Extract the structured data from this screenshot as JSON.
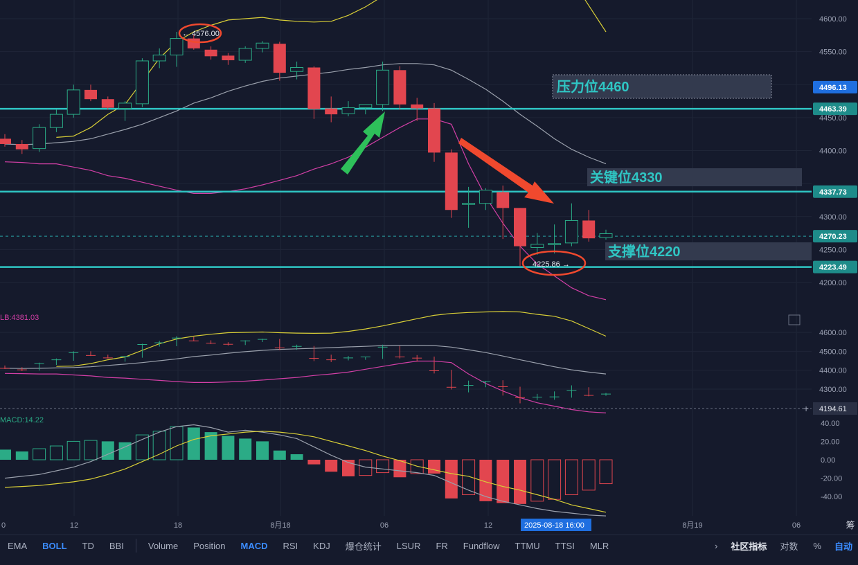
{
  "chart_data": [
    {
      "type": "candlestick",
      "panel": "main",
      "yticks": [
        4600.0,
        4550.0,
        4450.0,
        4400.0,
        4300.0,
        4250.0,
        4200.0
      ],
      "ylim": [
        4165,
        4628
      ],
      "candles": [
        {
          "o": 4418,
          "h": 4425,
          "l": 4406,
          "c": 4410
        },
        {
          "o": 4410,
          "h": 4416,
          "l": 4395,
          "c": 4402
        },
        {
          "o": 4403,
          "h": 4440,
          "l": 4398,
          "c": 4435
        },
        {
          "o": 4435,
          "h": 4462,
          "l": 4428,
          "c": 4455
        },
        {
          "o": 4455,
          "h": 4500,
          "l": 4450,
          "c": 4492
        },
        {
          "o": 4492,
          "h": 4500,
          "l": 4475,
          "c": 4478
        },
        {
          "o": 4478,
          "h": 4482,
          "l": 4462,
          "c": 4465
        },
        {
          "o": 4464,
          "h": 4475,
          "l": 4445,
          "c": 4472
        },
        {
          "o": 4471,
          "h": 4540,
          "l": 4466,
          "c": 4536
        },
        {
          "o": 4536,
          "h": 4555,
          "l": 4525,
          "c": 4545
        },
        {
          "o": 4545,
          "h": 4580,
          "l": 4527,
          "c": 4570
        },
        {
          "o": 4570,
          "h": 4576,
          "l": 4553,
          "c": 4555
        },
        {
          "o": 4553,
          "h": 4558,
          "l": 4538,
          "c": 4543
        },
        {
          "o": 4544,
          "h": 4548,
          "l": 4530,
          "c": 4537
        },
        {
          "o": 4537,
          "h": 4558,
          "l": 4533,
          "c": 4555
        },
        {
          "o": 4555,
          "h": 4566,
          "l": 4549,
          "c": 4563
        },
        {
          "o": 4562,
          "h": 4565,
          "l": 4506,
          "c": 4518
        },
        {
          "o": 4520,
          "h": 4535,
          "l": 4508,
          "c": 4526
        },
        {
          "o": 4526,
          "h": 4528,
          "l": 4448,
          "c": 4463
        },
        {
          "o": 4464,
          "h": 4482,
          "l": 4443,
          "c": 4455
        },
        {
          "o": 4456,
          "h": 4475,
          "l": 4452,
          "c": 4465
        },
        {
          "o": 4465,
          "h": 4470,
          "l": 4455,
          "c": 4470
        },
        {
          "o": 4470,
          "h": 4535,
          "l": 4460,
          "c": 4522
        },
        {
          "o": 4522,
          "h": 4528,
          "l": 4462,
          "c": 4470
        },
        {
          "o": 4470,
          "h": 4480,
          "l": 4445,
          "c": 4464
        },
        {
          "o": 4464,
          "h": 4472,
          "l": 4383,
          "c": 4397
        },
        {
          "o": 4397,
          "h": 4402,
          "l": 4298,
          "c": 4310
        },
        {
          "o": 4320,
          "h": 4345,
          "l": 4283,
          "c": 4320
        },
        {
          "o": 4320,
          "h": 4343,
          "l": 4310,
          "c": 4340
        },
        {
          "o": 4337,
          "h": 4347,
          "l": 4266,
          "c": 4313
        },
        {
          "o": 4313,
          "h": 4313,
          "l": 4225,
          "c": 4255
        },
        {
          "o": 4253,
          "h": 4275,
          "l": 4242,
          "c": 4258
        },
        {
          "o": 4258,
          "h": 4288,
          "l": 4244,
          "c": 4259
        },
        {
          "o": 4260,
          "h": 4320,
          "l": 4255,
          "c": 4294
        },
        {
          "o": 4294,
          "h": 4310,
          "l": 4262,
          "c": 4267
        },
        {
          "o": 4268,
          "h": 4280,
          "l": 4265,
          "c": 4274
        }
      ],
      "boll_upper": [
        null,
        null,
        null,
        4420,
        4422,
        4435,
        4455,
        4470,
        4505,
        4540,
        4565,
        4580,
        4590,
        4598,
        4600,
        4602,
        4598,
        4596,
        4595,
        4596,
        4605,
        4618,
        4634,
        4653,
        4672,
        4690,
        4700,
        4705,
        4708,
        4710,
        4708,
        4695,
        4685,
        4660,
        4620,
        4580
      ],
      "boll_mid": [
        4410,
        4409,
        4410,
        4412,
        4414,
        4418,
        4425,
        4432,
        4440,
        4450,
        4460,
        4472,
        4480,
        4490,
        4498,
        4505,
        4510,
        4513,
        4516,
        4519,
        4523,
        4526,
        4530,
        4532,
        4532,
        4530,
        4522,
        4508,
        4493,
        4475,
        4455,
        4437,
        4418,
        4402,
        4390,
        4380
      ],
      "boll_lower": [
        4383,
        4382,
        4380,
        4380,
        4375,
        4370,
        4362,
        4358,
        4352,
        4346,
        4340,
        4335,
        4335,
        4338,
        4342,
        4348,
        4355,
        4362,
        4372,
        4380,
        4390,
        4405,
        4420,
        4435,
        4448,
        4448,
        4440,
        4380,
        4330,
        4290,
        4255,
        4228,
        4210,
        4192,
        4180,
        4174
      ],
      "levels": [
        {
          "price": "4496.13",
          "label": "压力位4460",
          "color": "#1f6fe0"
        },
        {
          "price": "4463.39",
          "line": 4463.39
        },
        {
          "price": "4337.73",
          "line": 4337.73,
          "label": "关键位4330"
        },
        {
          "price": "4270.23",
          "dashed": 4270.23
        },
        {
          "price": "4223.49",
          "line": 4223.49,
          "label": "支撑位4220"
        }
      ],
      "annotations": {
        "high": "4576.00",
        "low": "4225.86"
      }
    },
    {
      "type": "line",
      "panel": "boll-mini",
      "title": "LB:4381.03",
      "yticks": [
        4600.0,
        4500.0,
        4400.0,
        4300.0
      ],
      "crosshair_label": "4194.61"
    },
    {
      "type": "bar",
      "panel": "macd",
      "title": "MACD:14.22",
      "yticks": [
        "40.00",
        "20.00",
        "0.00",
        "-20.00",
        "-40.00"
      ],
      "ylim": [
        -58,
        48
      ],
      "hist": [
        11,
        9,
        12,
        15,
        20,
        21,
        20,
        19,
        27,
        31,
        36,
        35,
        30,
        26,
        23,
        20,
        10,
        6,
        -5,
        -13,
        -18,
        -17,
        -14,
        -19,
        -15,
        -15,
        -42,
        -38,
        -45,
        -47,
        -48,
        -45,
        -43,
        -38,
        -33,
        -26
      ],
      "dif": [
        -20,
        -18,
        -16,
        -12,
        -8,
        -2,
        6,
        14,
        22,
        30,
        36,
        38,
        35,
        30,
        32,
        30,
        27,
        23,
        14,
        5,
        -3,
        -8,
        -10,
        -12,
        -14,
        -17,
        -25,
        -33,
        -40,
        -45,
        -49,
        -53,
        -56,
        -58,
        -60,
        -61
      ],
      "dea": [
        -30,
        -29,
        -28,
        -26,
        -24,
        -21,
        -16,
        -10,
        -2,
        6,
        15,
        22,
        26,
        28,
        30,
        31,
        30,
        28,
        25,
        20,
        15,
        10,
        4,
        -1,
        -7,
        -11,
        -15,
        -18,
        -24,
        -29,
        -33,
        -38,
        -43,
        -49,
        -53,
        -57
      ]
    }
  ],
  "xaxis": {
    "labels": [
      "0",
      "12",
      "18",
      "8月18",
      "06",
      "12",
      "8月19",
      "06"
    ],
    "crosshair": "2025-08-18 16:00",
    "right_glyph": "筹"
  },
  "toolbar": [
    "EMA",
    "BOLL",
    "TD",
    "BBI",
    "Volume",
    "Position",
    "MACD",
    "RSI",
    "KDJ",
    "爆仓统计",
    "LSUR",
    "FR",
    "Fundflow",
    "TTMU",
    "TTSI",
    "MLR",
    "社区指标",
    "对数",
    "%",
    "自动"
  ],
  "colors": {
    "up": "#2bab86",
    "down": "#e2464f",
    "boll_upper": "#d9cf37",
    "boll_mid": "#9aa0ac",
    "boll_lower": "#d23fa6",
    "level": "#2fc6c4",
    "arrow_red": "#f0492e",
    "arrow_green": "#2ec05a",
    "accent": "#3b8cff"
  }
}
